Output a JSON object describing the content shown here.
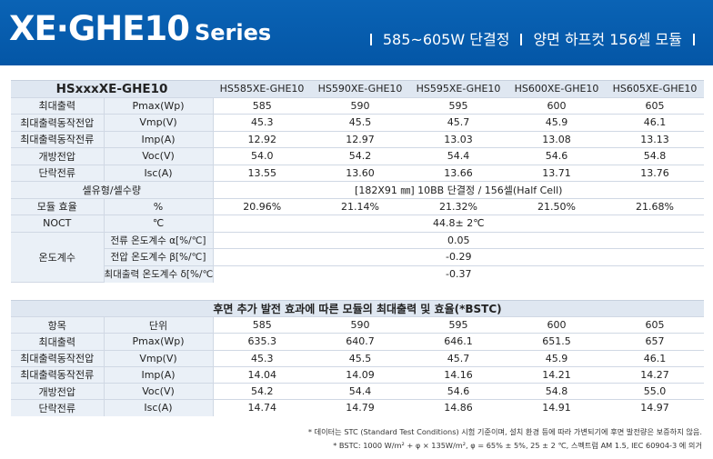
{
  "banner": {
    "series_big": "XE·GHE10",
    "series_small": "Series",
    "tag1": "585~605W 단결정",
    "tag2": "양면 하프컷 156셀 모듈"
  },
  "spec": {
    "model_header": "HSxxxXE-GHE10",
    "models": [
      "HS585XE-GHE10",
      "HS590XE-GHE10",
      "HS595XE-GHE10",
      "HS600XE-GHE10",
      "HS605XE-GHE10"
    ],
    "rows": [
      {
        "label": "최대출력",
        "unit": "Pmax(Wp)",
        "values": [
          "585",
          "590",
          "595",
          "600",
          "605"
        ]
      },
      {
        "label": "최대출력동작전압",
        "unit": "Vmp(V)",
        "values": [
          "45.3",
          "45.5",
          "45.7",
          "45.9",
          "46.1"
        ]
      },
      {
        "label": "최대출력동작전류",
        "unit": "Imp(A)",
        "values": [
          "12.92",
          "12.97",
          "13.03",
          "13.08",
          "13.13"
        ]
      },
      {
        "label": "개방전압",
        "unit": "Voc(V)",
        "values": [
          "54.0",
          "54.2",
          "54.4",
          "54.6",
          "54.8"
        ]
      },
      {
        "label": "단락전류",
        "unit": "Isc(A)",
        "values": [
          "13.55",
          "13.60",
          "13.66",
          "13.71",
          "13.76"
        ]
      }
    ],
    "cell_type_label": "셀유형/셀수량",
    "cell_type_value": "[182X91 ㎜] 10BB 단결정 / 156셀(Half Cell)",
    "efficiency": {
      "label": "모듈 효율",
      "unit": "%",
      "values": [
        "20.96%",
        "21.14%",
        "21.32%",
        "21.50%",
        "21.68%"
      ]
    },
    "noct": {
      "label": "NOCT",
      "unit": "℃",
      "value": "44.8± 2℃"
    },
    "temp": {
      "label": "온도계수",
      "rows": [
        {
          "sub": "전류 온도계수 α[%/℃]",
          "value": "0.05"
        },
        {
          "sub": "전압 온도계수 β[%/℃]",
          "value": "-0.29"
        },
        {
          "sub": "최대출력 온도계수 δ[%/℃]",
          "value": "-0.37"
        }
      ]
    }
  },
  "bstc": {
    "title": "후면 추가 발전 효과에 따른 모듈의 최대출력 및 효율(*BSTC)",
    "head_label": "항목",
    "head_unit": "단위",
    "head_values": [
      "585",
      "590",
      "595",
      "600",
      "605"
    ],
    "rows": [
      {
        "label": "최대출력",
        "unit": "Pmax(Wp)",
        "values": [
          "635.3",
          "640.7",
          "646.1",
          "651.5",
          "657"
        ]
      },
      {
        "label": "최대출력동작전압",
        "unit": "Vmp(V)",
        "values": [
          "45.3",
          "45.5",
          "45.7",
          "45.9",
          "46.1"
        ]
      },
      {
        "label": "최대출력동작전류",
        "unit": "Imp(A)",
        "values": [
          "14.04",
          "14.09",
          "14.16",
          "14.21",
          "14.27"
        ]
      },
      {
        "label": "개방전압",
        "unit": "Voc(V)",
        "values": [
          "54.2",
          "54.4",
          "54.6",
          "54.8",
          "55.0"
        ]
      },
      {
        "label": "단락전류",
        "unit": "Isc(A)",
        "values": [
          "14.74",
          "14.79",
          "14.86",
          "14.91",
          "14.97"
        ]
      }
    ]
  },
  "notes": {
    "note1": "* 데이터는 STC (Standard Test Conditions) 시험 기준이며, 설치 환경 등에 따라 가변되기에 후면 발전량은 보증하지 않음.",
    "note2": "* BSTC: 1000 W/m² + φ × 135W/m², φ = 65% ± 5%, 25 ± 2 ℃, 스펙트럼 AM 1.5, IEC 60904-3 에 의거"
  }
}
